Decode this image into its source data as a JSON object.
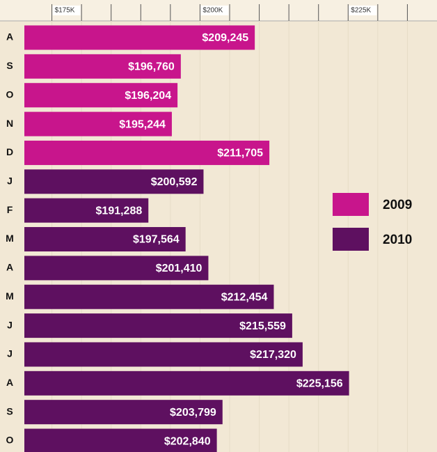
{
  "chart_data": {
    "type": "barh",
    "categories": [
      "A",
      "S",
      "O",
      "N",
      "D",
      "J",
      "F",
      "M",
      "A",
      "M",
      "J",
      "J",
      "A",
      "S",
      "O"
    ],
    "series": [
      {
        "name": "2009",
        "color": "#c8158c",
        "values": [
          209245,
          196760,
          196204,
          195244,
          211705,
          null,
          null,
          null,
          null,
          null,
          null,
          null,
          null,
          null,
          null
        ],
        "value_labels": [
          "$209,245",
          "$196,760",
          "$196,204",
          "$195,244",
          "$211,705",
          null,
          null,
          null,
          null,
          null,
          null,
          null,
          null,
          null,
          null
        ]
      },
      {
        "name": "2010",
        "color": "#5e1060",
        "values": [
          null,
          null,
          null,
          null,
          null,
          200592,
          191288,
          197564,
          201410,
          212454,
          215559,
          217320,
          225156,
          203799,
          202840
        ],
        "value_labels": [
          null,
          null,
          null,
          null,
          null,
          "$200,592",
          "$191,288",
          "$197,564",
          "$201,410",
          "$212,454",
          "$215,559",
          "$217,320",
          "$225,156",
          "$203,799",
          "$202,840"
        ]
      }
    ],
    "xlim": [
      170000,
      240000
    ],
    "xticks": [
      {
        "value": 175000,
        "label": "$175K"
      },
      {
        "value": 200000,
        "label": "$200K"
      },
      {
        "value": 225000,
        "label": "$225K"
      }
    ],
    "minor_xticks": [
      180000,
      185000,
      190000,
      195000,
      205000,
      210000,
      215000,
      220000,
      230000,
      235000
    ],
    "grid": true
  }
}
